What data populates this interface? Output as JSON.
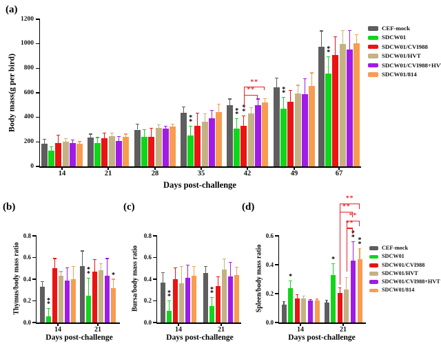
{
  "colors": {
    "background": "#FFFFFF",
    "axis": "#000000",
    "significance": "#000000",
    "bracket": "#ED1C24"
  },
  "legend": {
    "entries": [
      {
        "label": "CEF-mock",
        "color": "#5E5E5E"
      },
      {
        "label": "SDCW01",
        "color": "#0FD61A"
      },
      {
        "label": "SDCW01/CVI988",
        "color": "#EC1313"
      },
      {
        "label": "SDCW01/HVT",
        "color": "#C5B183"
      },
      {
        "label": "SDCW01/CVI988+HVT",
        "color": "#A01BE8"
      },
      {
        "label": "SDCW01/814",
        "color": "#F79C50"
      }
    ]
  },
  "chart_data": [
    {
      "panel_label": "(a)",
      "type": "bar",
      "ylabel": "Body mass(g per bird)",
      "xlabel": "Days post-challenge",
      "ylim": [
        0,
        1200
      ],
      "yticks": [
        "0",
        "200",
        "400",
        "600",
        "800",
        "1000",
        "1200"
      ],
      "categories": [
        "14",
        "21",
        "28",
        "35",
        "42",
        "49",
        "67"
      ],
      "grid": false,
      "legend_position": "top-right",
      "series": [
        {
          "name": "CEF-mock",
          "color": "#5E5E5E",
          "values": [
            185,
            238,
            300,
            440,
            497,
            645,
            975
          ],
          "errors": [
            36,
            26,
            47,
            45,
            53,
            77,
            130
          ]
        },
        {
          "name": "SDCW01",
          "color": "#0FD61A",
          "values": [
            128,
            193,
            240,
            255,
            306,
            471,
            757
          ],
          "errors": [
            33,
            43,
            60,
            75,
            82,
            92,
            136
          ]
        },
        {
          "name": "SDCW01/CVI988",
          "color": "#EC1313",
          "values": [
            192,
            230,
            240,
            330,
            330,
            529,
            907
          ],
          "errors": [
            63,
            43,
            69,
            103,
            83,
            90,
            151
          ]
        },
        {
          "name": "SDCW01/HVT",
          "color": "#C5B183",
          "values": [
            203,
            248,
            315,
            365,
            433,
            595,
            1000
          ],
          "errors": [
            22,
            25,
            23,
            66,
            45,
            67,
            109
          ]
        },
        {
          "name": "SDCW01/CVI988+HVT",
          "color": "#A01BE8",
          "values": [
            192,
            207,
            308,
            392,
            500,
            587,
            954
          ],
          "errors": [
            25,
            38,
            21,
            66,
            50,
            126,
            154
          ]
        },
        {
          "name": "SDCW01/814",
          "color": "#F79C50",
          "values": [
            185,
            240,
            323,
            445,
            520,
            656,
            1005
          ],
          "errors": [
            17,
            24,
            24,
            62,
            33,
            107,
            71
          ]
        }
      ],
      "significance": [
        {
          "group": 3,
          "series": 1,
          "label": "**"
        },
        {
          "group": 4,
          "series": 1,
          "label": "**"
        },
        {
          "group": 4,
          "series": 2,
          "label": "**"
        },
        {
          "group": 5,
          "series": 1,
          "label": "**"
        },
        {
          "group": 6,
          "series": 1,
          "label": "**"
        }
      ],
      "brackets": [
        {
          "group": 4,
          "from": 2,
          "to": 4,
          "top": 585,
          "left_drop_to": 478,
          "right_drop": 30,
          "label": "**"
        },
        {
          "group": 4,
          "from": 2,
          "to": 5,
          "top": 650,
          "left_drop_to": 585,
          "right_drop": 30,
          "label": "**"
        }
      ]
    },
    {
      "panel_label": "(b)",
      "type": "bar",
      "ylabel": "Thymus/body mass ratio",
      "xlabel": "Days post-challenge",
      "ylim": [
        0,
        0.8
      ],
      "yticks": [
        "0.0",
        "0.2",
        "0.4",
        "0.6",
        "0.8"
      ],
      "categories": [
        "14",
        "21"
      ],
      "grid": false,
      "series": [
        {
          "name": "CEF-mock",
          "color": "#5E5E5E",
          "values": [
            0.33,
            0.52
          ],
          "errors": [
            0.05,
            0.14
          ]
        },
        {
          "name": "SDCW01",
          "color": "#0FD61A",
          "values": [
            0.06,
            0.25
          ],
          "errors": [
            0.07,
            0.16
          ]
        },
        {
          "name": "SDCW01/CVI988",
          "color": "#EC1313",
          "values": [
            0.5,
            0.47
          ],
          "errors": [
            0.09,
            0.11
          ]
        },
        {
          "name": "SDCW01/HVT",
          "color": "#C5B183",
          "values": [
            0.43,
            0.485
          ],
          "errors": [
            0.04,
            0.06
          ]
        },
        {
          "name": "SDCW01/CVI988+HVT",
          "color": "#A01BE8",
          "values": [
            0.385,
            0.43
          ],
          "errors": [
            0.12,
            0.16
          ]
        },
        {
          "name": "SDCW01/814",
          "color": "#F79C50",
          "values": [
            0.4,
            0.32
          ],
          "errors": [
            0.12,
            0.08
          ]
        }
      ],
      "significance": [
        {
          "group": 0,
          "series": 1,
          "label": "**"
        },
        {
          "group": 1,
          "series": 1,
          "label": "**"
        },
        {
          "group": 1,
          "series": 5,
          "label": "*"
        }
      ],
      "brackets": []
    },
    {
      "panel_label": "(c)",
      "type": "bar",
      "ylabel": "Bursa/body mass ratio",
      "xlabel": "Days post-challenge",
      "ylim": [
        0,
        0.8
      ],
      "yticks": [
        "0.0",
        "0.2",
        "0.4",
        "0.6",
        "0.8"
      ],
      "categories": [
        "14",
        "21"
      ],
      "grid": false,
      "series": [
        {
          "name": "CEF-mock",
          "color": "#5E5E5E",
          "values": [
            0.37,
            0.46
          ],
          "errors": [
            0.09,
            0.06
          ]
        },
        {
          "name": "SDCW01",
          "color": "#0FD61A",
          "values": [
            0.11,
            0.155
          ],
          "errors": [
            0.09,
            0.075
          ]
        },
        {
          "name": "SDCW01/CVI988",
          "color": "#EC1313",
          "values": [
            0.4,
            0.335
          ],
          "errors": [
            0.105,
            0.085
          ]
        },
        {
          "name": "SDCW01/HVT",
          "color": "#C5B183",
          "values": [
            0.36,
            0.49
          ],
          "errors": [
            0.16,
            0.095
          ]
        },
        {
          "name": "SDCW01/CVI988+HVT",
          "color": "#A01BE8",
          "values": [
            0.415,
            0.425
          ],
          "errors": [
            0.115,
            0.13
          ]
        },
        {
          "name": "SDCW01/814",
          "color": "#F79C50",
          "values": [
            0.43,
            0.435
          ],
          "errors": [
            0.09,
            0.075
          ]
        }
      ],
      "significance": [
        {
          "group": 0,
          "series": 1,
          "label": "**"
        },
        {
          "group": 1,
          "series": 1,
          "label": "**"
        }
      ],
      "brackets": []
    },
    {
      "panel_label": "(d)",
      "type": "bar",
      "ylabel": "Spleen/body mass ratio",
      "xlabel": "Days post-challenge",
      "ylim": [
        0,
        0.6
      ],
      "yticks": [
        "0.0",
        "0.2",
        "0.4",
        "0.6"
      ],
      "categories": [
        "14",
        "21"
      ],
      "grid": false,
      "legend_position": "right",
      "series": [
        {
          "name": "CEF-mock",
          "color": "#5E5E5E",
          "values": [
            0.126,
            0.137
          ],
          "errors": [
            0.02,
            0.018
          ]
        },
        {
          "name": "SDCW01",
          "color": "#0FD61A",
          "values": [
            0.238,
            0.328
          ],
          "errors": [
            0.052,
            0.08
          ]
        },
        {
          "name": "SDCW01/CVI988",
          "color": "#EC1313",
          "values": [
            0.168,
            0.206
          ],
          "errors": [
            0.025,
            0.033
          ]
        },
        {
          "name": "SDCW01/HVT",
          "color": "#C5B183",
          "values": [
            0.165,
            0.228
          ],
          "errors": [
            0.02,
            0.085
          ]
        },
        {
          "name": "SDCW01/CVI988+HVT",
          "color": "#A01BE8",
          "values": [
            0.151,
            0.43
          ],
          "errors": [
            0.01,
            0.13
          ]
        },
        {
          "name": "SDCW01/814",
          "color": "#F79C50",
          "values": [
            0.152,
            0.437
          ],
          "errors": [
            0.01,
            0.075
          ]
        }
      ],
      "significance": [
        {
          "group": 0,
          "series": 1,
          "label": "*"
        },
        {
          "group": 1,
          "series": 1,
          "label": "*"
        },
        {
          "group": 1,
          "series": 4,
          "label": "**"
        },
        {
          "group": 1,
          "series": 5,
          "label": "**"
        }
      ],
      "brackets": [
        {
          "group": 1,
          "from": 2,
          "to": 5,
          "top": 0.825,
          "left_drop_to": 0.26,
          "right_drop": 0.04,
          "label": "**"
        },
        {
          "group": 1,
          "from": 2,
          "to": 4,
          "top": 0.768,
          "left_drop_to": 0.26,
          "right_drop": 0.04,
          "label": "**"
        },
        {
          "group": 1,
          "from": 3,
          "to": 5,
          "top": 0.705,
          "left_drop_to": 0.352,
          "right_drop": 0.04,
          "label": "**"
        },
        {
          "group": 1,
          "from": 3,
          "to": 4,
          "top": 0.655,
          "left_drop_to": 0.352,
          "right_drop": 0.04,
          "label": "**"
        }
      ]
    }
  ]
}
